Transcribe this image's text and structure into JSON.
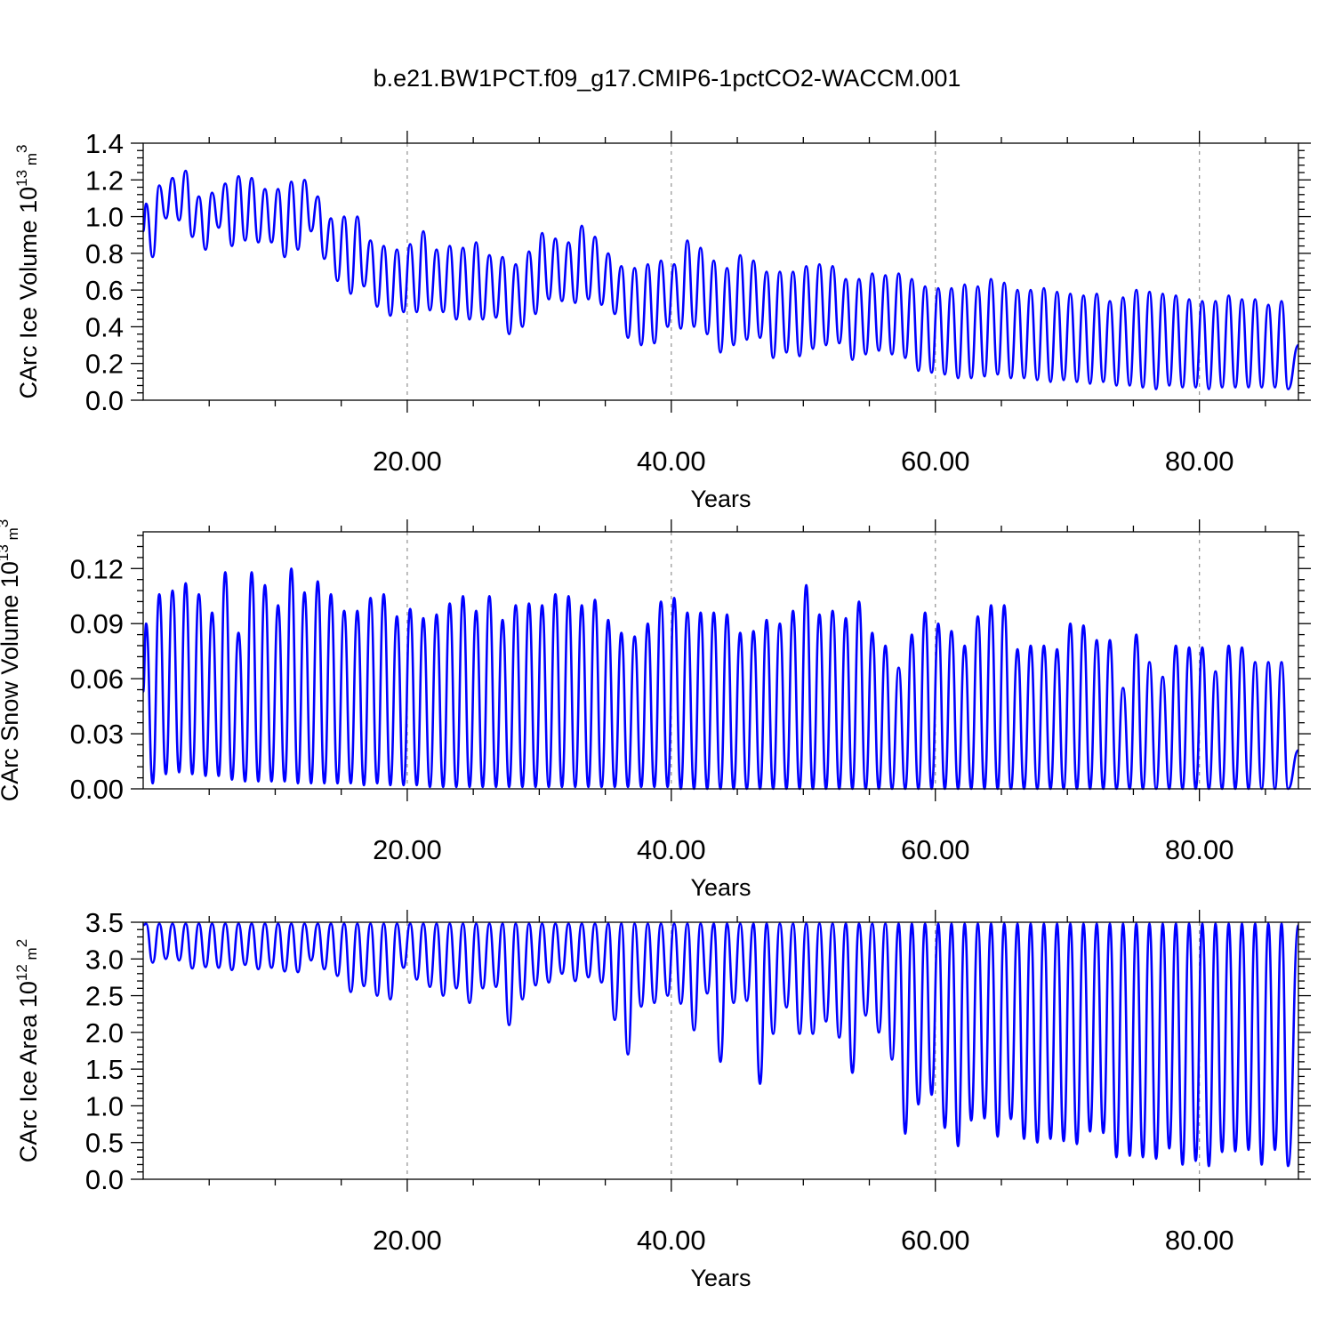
{
  "figure": {
    "title": "b.e21.BW1PCT.f09_g17.CMIP6-1pctCO2-WACCM.001",
    "line_color": "#0000ff"
  },
  "chart_data": [
    {
      "type": "line",
      "ylabel": "CArc Ice Volume 10",
      "ylabel_exp": "13",
      "ylabel_unit": " m",
      "ylabel_unit_exp": "3",
      "xlabel": "Years",
      "xlim": [
        0,
        87.5
      ],
      "ylim": [
        0.0,
        1.4
      ],
      "xticks": [
        20,
        40,
        60,
        80
      ],
      "xtick_labels": [
        "20.00",
        "40.00",
        "60.00",
        "80.00"
      ],
      "yticks": [
        0.0,
        0.2,
        0.4,
        0.6,
        0.8,
        1.0,
        1.2,
        1.4
      ],
      "ytick_labels": [
        "0.0",
        "0.2",
        "0.4",
        "0.6",
        "0.8",
        "1.0",
        "1.2",
        "1.4"
      ],
      "grid_x_dashed": true,
      "series": [
        {
          "cycle_years": 1,
          "peak_values": [
            1.07,
            1.17,
            1.21,
            1.25,
            1.11,
            1.13,
            1.18,
            1.22,
            1.21,
            1.15,
            1.15,
            1.19,
            1.2,
            1.11,
            0.99,
            1.0,
            1.0,
            0.87,
            0.84,
            0.82,
            0.85,
            0.92,
            0.82,
            0.84,
            0.83,
            0.86,
            0.79,
            0.78,
            0.74,
            0.81,
            0.91,
            0.88,
            0.86,
            0.95,
            0.89,
            0.8,
            0.73,
            0.72,
            0.74,
            0.76,
            0.74,
            0.87,
            0.83,
            0.76,
            0.72,
            0.79,
            0.76,
            0.7,
            0.7,
            0.7,
            0.73,
            0.74,
            0.73,
            0.66,
            0.66,
            0.69,
            0.68,
            0.69,
            0.66,
            0.62,
            0.61,
            0.61,
            0.63,
            0.62,
            0.66,
            0.64,
            0.6,
            0.6,
            0.61,
            0.59,
            0.58,
            0.57,
            0.58,
            0.54,
            0.56,
            0.6,
            0.59,
            0.58,
            0.57,
            0.55,
            0.54,
            0.54,
            0.57,
            0.55,
            0.55,
            0.52,
            0.54
          ],
          "trough_values": [
            0.78,
            0.99,
            0.98,
            0.89,
            0.82,
            0.94,
            0.84,
            0.87,
            0.86,
            0.86,
            0.78,
            0.82,
            0.92,
            0.77,
            0.65,
            0.58,
            0.62,
            0.51,
            0.46,
            0.48,
            0.48,
            0.49,
            0.48,
            0.44,
            0.44,
            0.44,
            0.45,
            0.36,
            0.4,
            0.47,
            0.55,
            0.54,
            0.53,
            0.55,
            0.52,
            0.47,
            0.34,
            0.3,
            0.31,
            0.4,
            0.39,
            0.4,
            0.36,
            0.26,
            0.3,
            0.33,
            0.34,
            0.23,
            0.26,
            0.24,
            0.28,
            0.3,
            0.31,
            0.22,
            0.25,
            0.27,
            0.25,
            0.23,
            0.16,
            0.15,
            0.14,
            0.12,
            0.12,
            0.13,
            0.14,
            0.12,
            0.12,
            0.11,
            0.1,
            0.11,
            0.1,
            0.09,
            0.1,
            0.08,
            0.08,
            0.07,
            0.06,
            0.08,
            0.07,
            0.07,
            0.06,
            0.07,
            0.07,
            0.07,
            0.07,
            0.07,
            0.06
          ],
          "start_value": 0.92,
          "end_value": 0.3
        }
      ]
    },
    {
      "type": "line",
      "ylabel": "CArc Snow Volume 10",
      "ylabel_exp": "13",
      "ylabel_unit": " m",
      "ylabel_unit_exp": "3",
      "xlabel": "Years",
      "xlim": [
        0,
        87.5
      ],
      "ylim": [
        0.0,
        0.14
      ],
      "xticks": [
        20,
        40,
        60,
        80
      ],
      "xtick_labels": [
        "20.00",
        "40.00",
        "60.00",
        "80.00"
      ],
      "yticks": [
        0.0,
        0.03,
        0.06,
        0.09,
        0.12
      ],
      "ytick_labels": [
        "0.00",
        "0.03",
        "0.06",
        "0.09",
        "0.12"
      ],
      "grid_x_dashed": true,
      "series": [
        {
          "cycle_years": 1,
          "peak_values": [
            0.09,
            0.106,
            0.108,
            0.112,
            0.106,
            0.096,
            0.118,
            0.085,
            0.118,
            0.111,
            0.1,
            0.12,
            0.107,
            0.113,
            0.106,
            0.097,
            0.097,
            0.104,
            0.106,
            0.094,
            0.098,
            0.093,
            0.095,
            0.101,
            0.105,
            0.097,
            0.105,
            0.092,
            0.1,
            0.101,
            0.1,
            0.106,
            0.105,
            0.1,
            0.103,
            0.092,
            0.085,
            0.083,
            0.09,
            0.102,
            0.104,
            0.096,
            0.096,
            0.096,
            0.095,
            0.085,
            0.086,
            0.092,
            0.09,
            0.097,
            0.111,
            0.095,
            0.097,
            0.093,
            0.102,
            0.085,
            0.078,
            0.066,
            0.084,
            0.096,
            0.09,
            0.086,
            0.078,
            0.094,
            0.1,
            0.1,
            0.076,
            0.078,
            0.078,
            0.076,
            0.09,
            0.089,
            0.081,
            0.081,
            0.055,
            0.084,
            0.069,
            0.061,
            0.078,
            0.077,
            0.077,
            0.064,
            0.078,
            0.077,
            0.069,
            0.069,
            0.069
          ],
          "trough_values": [
            0.003,
            0.008,
            0.009,
            0.008,
            0.007,
            0.007,
            0.005,
            0.004,
            0.004,
            0.004,
            0.004,
            0.003,
            0.003,
            0.003,
            0.003,
            0.003,
            0.002,
            0.003,
            0.002,
            0.002,
            0.002,
            0.001,
            0.001,
            0.001,
            0.001,
            0.001,
            0.001,
            0.001,
            0.001,
            0.001,
            0.001,
            0.001,
            0.001,
            0.001,
            0.001,
            0.001,
            0.001,
            0.001,
            0.001,
            0.001,
            0.0,
            0.0,
            0.0,
            0.0,
            0.0,
            0.0,
            0.0,
            0.0,
            0.0,
            0.0,
            0.0,
            0.0,
            0.0,
            0.0,
            0.0,
            0.0,
            0.0,
            0.0,
            0.0,
            0.0,
            0.0,
            0.0,
            0.0,
            0.0,
            0.0,
            0.0,
            0.0,
            0.0,
            0.0,
            0.0,
            0.0,
            0.0,
            0.0,
            0.0,
            0.0,
            0.0,
            0.0,
            0.0,
            0.0,
            0.0,
            0.0,
            0.0,
            0.0,
            0.0,
            0.0,
            0.0,
            0.0
          ],
          "start_value": 0.053,
          "end_value": 0.021
        }
      ]
    },
    {
      "type": "line",
      "ylabel": "CArc Ice Area 10",
      "ylabel_exp": "12",
      "ylabel_unit": " m",
      "ylabel_unit_exp": "2",
      "xlabel": "Years",
      "xlim": [
        0,
        87.5
      ],
      "ylim": [
        0.0,
        3.5
      ],
      "xticks": [
        20,
        40,
        60,
        80
      ],
      "xtick_labels": [
        "20.00",
        "40.00",
        "60.00",
        "80.00"
      ],
      "yticks": [
        0.0,
        0.5,
        1.0,
        1.5,
        2.0,
        2.5,
        3.0,
        3.5
      ],
      "ytick_labels": [
        "0.0",
        "0.5",
        "1.0",
        "1.5",
        "2.0",
        "2.5",
        "3.0",
        "3.5"
      ],
      "grid_x_dashed": true,
      "series": [
        {
          "cycle_years": 1,
          "peak_values": [
            3.48,
            3.48,
            3.48,
            3.48,
            3.48,
            3.48,
            3.48,
            3.48,
            3.48,
            3.48,
            3.48,
            3.48,
            3.48,
            3.48,
            3.48,
            3.48,
            3.48,
            3.48,
            3.48,
            3.48,
            3.48,
            3.48,
            3.48,
            3.48,
            3.48,
            3.48,
            3.48,
            3.48,
            3.48,
            3.48,
            3.48,
            3.48,
            3.48,
            3.48,
            3.48,
            3.48,
            3.48,
            3.48,
            3.48,
            3.48,
            3.48,
            3.48,
            3.48,
            3.48,
            3.48,
            3.48,
            3.48,
            3.48,
            3.48,
            3.48,
            3.48,
            3.48,
            3.48,
            3.48,
            3.48,
            3.48,
            3.48,
            3.48,
            3.48,
            3.48,
            3.48,
            3.48,
            3.48,
            3.48,
            3.48,
            3.48,
            3.48,
            3.48,
            3.48,
            3.48,
            3.48,
            3.48,
            3.48,
            3.48,
            3.48,
            3.48,
            3.48,
            3.48,
            3.48,
            3.48,
            3.48,
            3.48,
            3.48,
            3.48,
            3.48,
            3.48,
            3.48
          ],
          "trough_values": [
            2.95,
            3.0,
            2.98,
            2.87,
            2.89,
            2.88,
            2.85,
            2.92,
            2.86,
            2.88,
            2.83,
            2.82,
            2.98,
            2.86,
            2.77,
            2.55,
            2.63,
            2.5,
            2.45,
            2.88,
            2.72,
            2.62,
            2.5,
            2.6,
            2.4,
            2.6,
            2.62,
            2.1,
            2.45,
            2.64,
            2.68,
            2.8,
            2.7,
            2.75,
            2.68,
            2.17,
            1.7,
            2.35,
            2.4,
            2.5,
            2.39,
            2.03,
            2.53,
            1.6,
            2.4,
            2.43,
            1.3,
            1.98,
            2.34,
            1.98,
            1.98,
            2.15,
            1.93,
            1.45,
            2.23,
            2.0,
            1.63,
            0.62,
            1.02,
            1.15,
            0.7,
            0.45,
            0.8,
            0.83,
            0.58,
            0.82,
            0.55,
            0.5,
            0.55,
            0.52,
            0.48,
            0.65,
            0.63,
            0.3,
            0.32,
            0.3,
            0.28,
            0.42,
            0.2,
            0.25,
            0.18,
            0.37,
            0.38,
            0.4,
            0.2,
            0.4,
            0.18
          ],
          "start_value": 3.46,
          "end_value": 3.46
        }
      ]
    }
  ]
}
